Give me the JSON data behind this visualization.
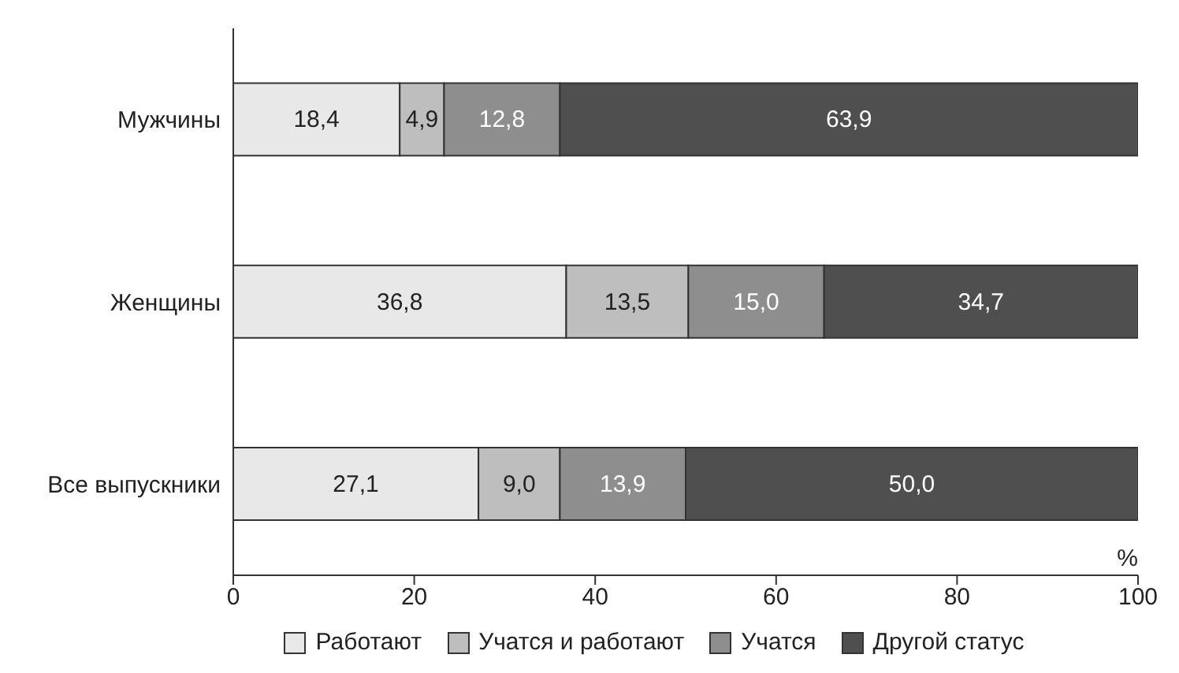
{
  "chart_data": {
    "type": "bar",
    "orientation": "horizontal",
    "stacked": true,
    "xlabel": "%",
    "categories": [
      "Мужчины",
      "Женщины",
      "Все выпускники"
    ],
    "series": [
      {
        "name": "Работают",
        "color": "#e8e8e8",
        "values": [
          18.4,
          36.8,
          27.1
        ],
        "value_labels": [
          "18,4",
          "36,8",
          "27,1"
        ]
      },
      {
        "name": "Учатся и работают",
        "color": "#bebebe",
        "values": [
          4.9,
          13.5,
          9.0
        ],
        "value_labels": [
          "4,9",
          "13,5",
          "9,0"
        ]
      },
      {
        "name": "Учатся",
        "color": "#8e8e8e",
        "values": [
          12.8,
          15.0,
          13.9
        ],
        "value_labels": [
          "12,8",
          "15,0",
          "13,9"
        ]
      },
      {
        "name": "Другой статус",
        "color": "#4f4f4f",
        "values": [
          63.9,
          34.7,
          50.0
        ],
        "value_labels": [
          "63,9",
          "34,7",
          "50,0"
        ]
      }
    ],
    "xlim": [
      0,
      100
    ],
    "xticks": [
      0,
      20,
      40,
      60,
      80,
      100
    ],
    "grid": false,
    "legend": "bottom"
  }
}
